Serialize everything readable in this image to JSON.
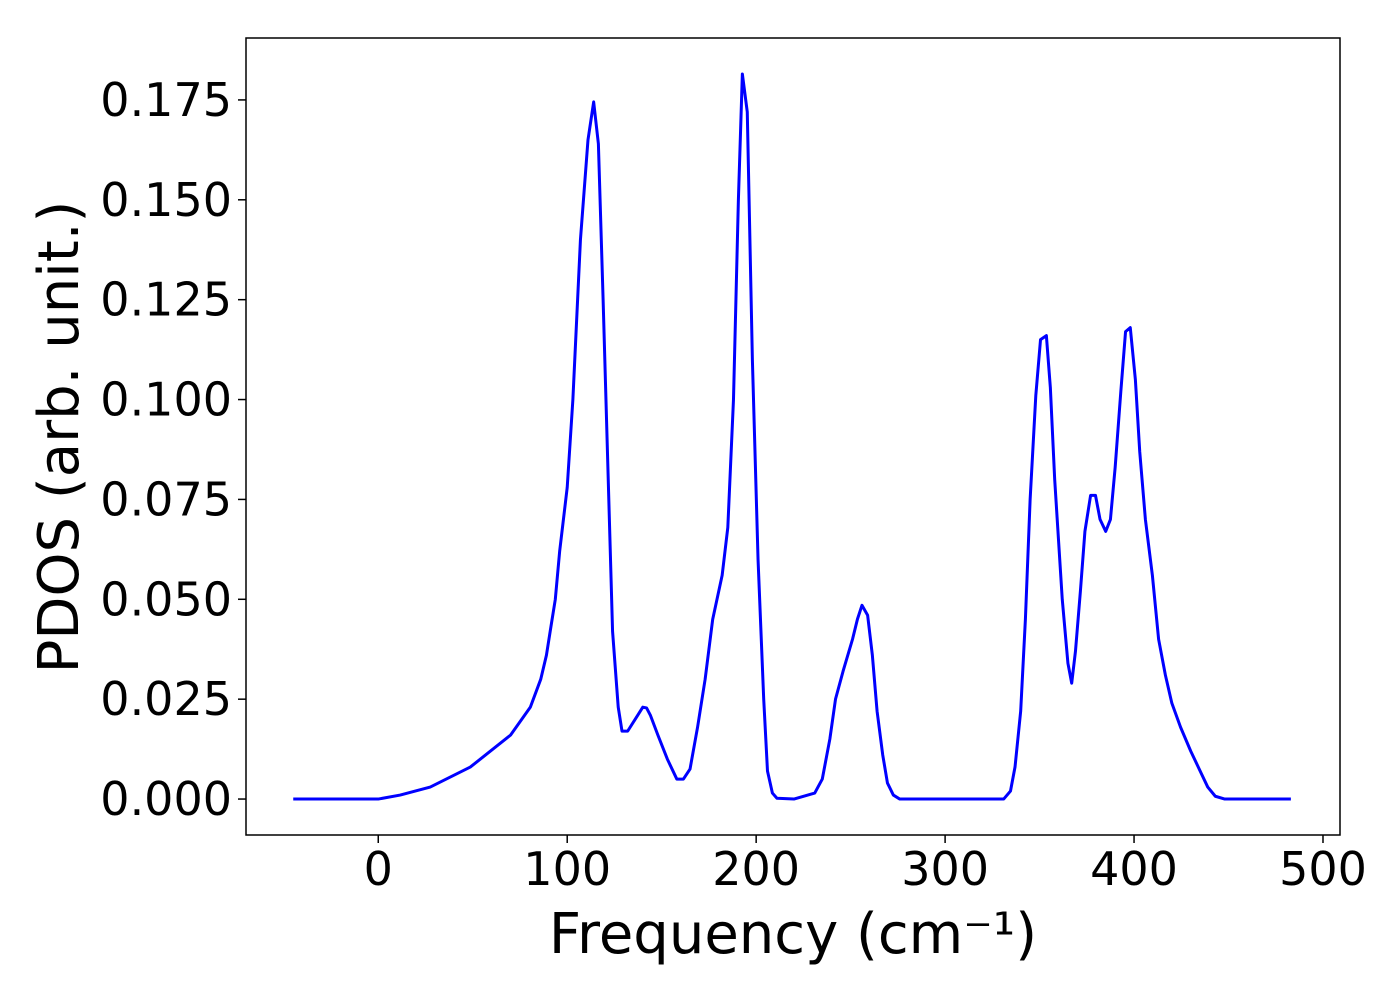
{
  "chart_data": {
    "type": "line",
    "x_label": "Frequency (cm⁻¹)",
    "y_label": "PDOS (arb. unit.)",
    "series": [
      {
        "color": "#0000ff",
        "x": [
          -45,
          -20,
          0,
          11.6,
          27.5,
          48.7,
          70,
          80.5,
          86,
          89,
          91,
          93.7,
          96,
          100,
          103,
          107,
          111,
          114,
          116.5,
          119,
          124,
          127,
          129,
          132,
          136,
          140,
          142,
          144,
          148,
          153,
          158,
          161.5,
          165,
          169,
          173,
          177,
          182,
          185,
          188,
          190.6,
          192.7,
          195.3,
          198,
          201,
          204,
          206,
          208.6,
          211,
          220,
          231,
          235,
          239,
          242,
          246,
          251,
          253.6,
          256,
          259,
          261.5,
          264,
          267,
          269.5,
          272.6,
          276,
          300,
          331,
          334.6,
          337,
          340,
          342.5,
          345,
          348,
          350.5,
          353.6,
          355.7,
          358,
          362,
          365,
          367,
          369,
          371.6,
          374,
          377,
          379.6,
          382,
          385,
          387.5,
          390,
          393,
          395.5,
          398,
          400.7,
          403,
          406,
          409.7,
          413,
          416.6,
          420,
          424.6,
          430,
          435,
          439,
          443,
          448,
          483
        ],
        "values": [
          0,
          0,
          0,
          0.001,
          0.003,
          0.008,
          0.016,
          0.023,
          0.03,
          0.036,
          0.042,
          0.05,
          0.062,
          0.078,
          0.1,
          0.14,
          0.165,
          0.1745,
          0.164,
          0.125,
          0.042,
          0.023,
          0.017,
          0.017,
          0.02,
          0.023,
          0.0228,
          0.021,
          0.016,
          0.01,
          0.005,
          0.005,
          0.0075,
          0.018,
          0.03,
          0.045,
          0.056,
          0.068,
          0.1,
          0.15,
          0.1815,
          0.172,
          0.11,
          0.06,
          0.025,
          0.007,
          0.0015,
          0.0002,
          0,
          0.0015,
          0.005,
          0.015,
          0.025,
          0.032,
          0.04,
          0.045,
          0.0485,
          0.046,
          0.036,
          0.022,
          0.011,
          0.004,
          0.001,
          0,
          0,
          0,
          0.002,
          0.008,
          0.022,
          0.045,
          0.075,
          0.101,
          0.115,
          0.116,
          0.103,
          0.08,
          0.05,
          0.034,
          0.029,
          0.037,
          0.052,
          0.067,
          0.076,
          0.076,
          0.07,
          0.067,
          0.07,
          0.083,
          0.102,
          0.117,
          0.118,
          0.105,
          0.087,
          0.07,
          0.056,
          0.04,
          0.031,
          0.024,
          0.018,
          0.012,
          0.007,
          0.003,
          0.0007,
          0,
          0
        ]
      }
    ],
    "xlim": [
      -70,
      509
    ],
    "ylim": [
      -0.009,
      0.1905
    ],
    "xticks": [
      0,
      100,
      200,
      300,
      400,
      500
    ],
    "yticks": [
      {
        "value": 0,
        "label": "0.000"
      },
      0.025,
      {
        "value": 0.05,
        "label": "0.050"
      },
      0.075,
      {
        "value": 0.1,
        "label": "0.100"
      },
      0.125,
      {
        "value": 0.15,
        "label": "0.150"
      },
      0.175
    ]
  }
}
